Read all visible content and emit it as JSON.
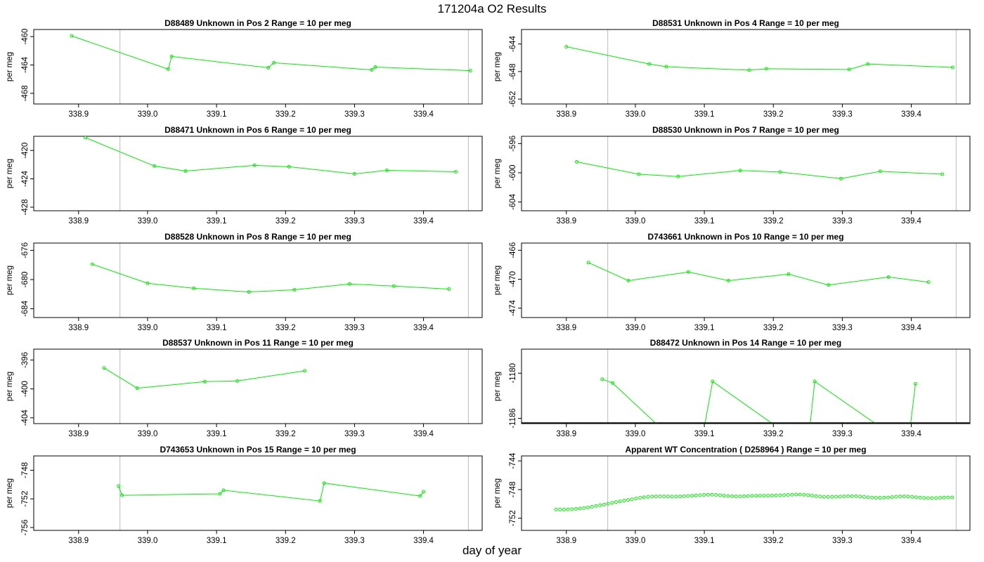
{
  "title": "171204a  O2 Results",
  "xlabel": "day of year",
  "colors": {
    "series": "#00ee00",
    "frame": "#000000",
    "vline": "#bbbbbb"
  },
  "chart_data": [
    {
      "type": "line",
      "title": "D88489    Unknown in Pos 2          Range = 10 per meg",
      "ylabel": "per meg",
      "xlim": [
        338.835,
        339.485
      ],
      "ylim": [
        -469.5,
        -459
      ],
      "xticks": [
        338.9,
        339.0,
        339.1,
        339.2,
        339.3,
        339.4
      ],
      "yticks": [
        -460,
        -464,
        -468
      ],
      "vlines": [
        338.96,
        339.465
      ],
      "x": [
        338.89,
        339.03,
        339.035,
        339.175,
        339.183,
        339.325,
        339.33,
        339.468
      ],
      "y": [
        -459.9,
        -464.6,
        -462.8,
        -464.4,
        -463.7,
        -464.7,
        -464.3,
        -464.8
      ]
    },
    {
      "type": "line",
      "title": "D88531    Unknown in Pos 4          Range = 10 per meg",
      "ylabel": "per meg",
      "xlim": [
        338.835,
        339.485
      ],
      "ylim": [
        -652.7,
        -641.9
      ],
      "xticks": [
        338.9,
        339.0,
        339.1,
        339.2,
        339.3,
        339.4
      ],
      "yticks": [
        -644,
        -648,
        -652
      ],
      "vlines": [
        338.96,
        339.465
      ],
      "x": [
        338.9,
        339.02,
        339.045,
        339.165,
        339.19,
        339.31,
        339.337,
        339.46
      ],
      "y": [
        -644.4,
        -646.9,
        -647.3,
        -647.8,
        -647.6,
        -647.7,
        -646.9,
        -647.4
      ]
    },
    {
      "type": "line",
      "title": "D88471    Unknown in Pos 6          Range = 10 per meg",
      "ylabel": "per meg",
      "xlim": [
        338.835,
        339.485
      ],
      "ylim": [
        -428.5,
        -418
      ],
      "xticks": [
        338.9,
        339.0,
        339.1,
        339.2,
        339.3,
        339.4
      ],
      "yticks": [
        -420,
        -424,
        -428
      ],
      "vlines": [
        338.96,
        339.465
      ],
      "x": [
        338.91,
        339.01,
        339.055,
        339.155,
        339.205,
        339.3,
        339.347,
        339.447
      ],
      "y": [
        -418.2,
        -422.2,
        -422.9,
        -422.1,
        -422.3,
        -423.3,
        -422.8,
        -423.0
      ]
    },
    {
      "type": "line",
      "title": "D88530    Unknown in Pos 7          Range = 10 per meg",
      "ylabel": "per meg",
      "xlim": [
        338.835,
        339.485
      ],
      "ylim": [
        -605.2,
        -595
      ],
      "xticks": [
        338.9,
        339.0,
        339.1,
        339.2,
        339.3,
        339.4
      ],
      "yticks": [
        -596,
        -600,
        -604
      ],
      "vlines": [
        338.96,
        339.465
      ],
      "x": [
        338.915,
        339.005,
        339.062,
        339.152,
        339.21,
        339.298,
        339.355,
        339.445
      ],
      "y": [
        -598.5,
        -600.2,
        -600.5,
        -599.7,
        -599.9,
        -600.8,
        -599.8,
        -600.2
      ]
    },
    {
      "type": "line",
      "title": "D88528    Unknown in Pos 8          Range = 10 per meg",
      "ylabel": "per meg",
      "xlim": [
        338.835,
        339.485
      ],
      "ylim": [
        -685.2,
        -675
      ],
      "xticks": [
        338.9,
        339.0,
        339.1,
        339.2,
        339.3,
        339.4
      ],
      "yticks": [
        -676,
        -680,
        -684
      ],
      "vlines": [
        338.96,
        339.465
      ],
      "x": [
        338.92,
        339.0,
        339.067,
        339.147,
        339.213,
        339.293,
        339.357,
        339.437
      ],
      "y": [
        -677.9,
        -680.5,
        -681.2,
        -681.7,
        -681.4,
        -680.6,
        -680.9,
        -681.3
      ]
    },
    {
      "type": "line",
      "title": "D743661    Unknown in Pos 10          Range = 10 per meg",
      "ylabel": "per meg",
      "xlim": [
        338.835,
        339.485
      ],
      "ylim": [
        -475.3,
        -465
      ],
      "xticks": [
        338.9,
        339.0,
        339.1,
        339.2,
        339.3,
        339.4
      ],
      "yticks": [
        -466,
        -470,
        -474
      ],
      "vlines": [
        338.96,
        339.465
      ],
      "x": [
        338.932,
        338.99,
        339.077,
        339.135,
        339.222,
        339.28,
        339.367,
        339.425
      ],
      "y": [
        -467.7,
        -470.2,
        -469.0,
        -470.2,
        -469.3,
        -470.8,
        -469.7,
        -470.4
      ]
    },
    {
      "type": "line",
      "title": "D88537    Unknown in Pos 11          Range = 10 per meg",
      "ylabel": "per meg",
      "xlim": [
        338.835,
        339.485
      ],
      "ylim": [
        -404.8,
        -394.5
      ],
      "xticks": [
        338.9,
        339.0,
        339.1,
        339.2,
        339.3,
        339.4
      ],
      "yticks": [
        -396,
        -400,
        -404
      ],
      "vlines": [
        338.96,
        339.465
      ],
      "x": [
        338.937,
        338.985,
        339.083,
        339.13,
        339.228
      ],
      "y": [
        -397.1,
        -399.9,
        -399.0,
        -398.9,
        -397.5
      ]
    },
    {
      "type": "line",
      "title": "D88472    Unknown in Pos 14          Range = 10 per meg",
      "ylabel": "per meg",
      "xlim": [
        338.835,
        339.485
      ],
      "ylim": [
        -1186.7,
        -1176.8
      ],
      "xticks": [
        338.9,
        339.0,
        339.1,
        339.2,
        339.3,
        339.4
      ],
      "yticks": [
        -1180,
        -1186
      ],
      "vlines": [
        338.96,
        339.465
      ],
      "x": [
        338.952,
        338.967,
        339.112,
        339.26,
        339.406
      ],
      "y": [
        -1180.8,
        -1181.3,
        -1181.1,
        -1181.1,
        -1181.4
      ],
      "note": "lines between points dip below the axis range"
    },
    {
      "type": "line",
      "title": "D743653    Unknown in Pos 15          Range = 10 per meg",
      "ylabel": "per meg",
      "xlim": [
        338.835,
        339.485
      ],
      "ylim": [
        -756.4,
        -746
      ],
      "xticks": [
        338.9,
        339.0,
        339.1,
        339.2,
        339.3,
        339.4
      ],
      "yticks": [
        -748,
        -752,
        -756
      ],
      "vlines": [
        338.96,
        339.465
      ],
      "x": [
        338.958,
        338.963,
        339.105,
        339.11,
        339.25,
        339.256,
        339.395,
        339.4
      ],
      "y": [
        -750.2,
        -751.5,
        -751.3,
        -750.8,
        -752.3,
        -749.8,
        -751.6,
        -751.0
      ]
    },
    {
      "type": "scatter",
      "title": "Apparent WT Concentration ( D258964 )          Range = 10 per meg",
      "ylabel": "per meg",
      "xlim": [
        338.835,
        339.485
      ],
      "ylim": [
        -753.7,
        -743.3
      ],
      "xticks": [
        338.9,
        339.0,
        339.1,
        339.2,
        339.3,
        339.4
      ],
      "yticks": [
        -744,
        -748,
        -752
      ],
      "vlines": [
        338.96,
        339.465
      ],
      "x_start": 338.885,
      "x_step": 0.0058,
      "y": [
        -750.8,
        -750.8,
        -750.8,
        -750.78,
        -750.75,
        -750.7,
        -750.65,
        -750.58,
        -750.5,
        -750.4,
        -750.3,
        -750.2,
        -750.1,
        -749.98,
        -749.85,
        -749.75,
        -749.65,
        -749.55,
        -749.45,
        -749.35,
        -749.25,
        -749.15,
        -749.08,
        -749.02,
        -748.98,
        -748.95,
        -748.95,
        -748.95,
        -748.97,
        -748.98,
        -748.98,
        -748.96,
        -748.93,
        -748.9,
        -748.86,
        -748.82,
        -748.78,
        -748.75,
        -748.72,
        -748.72,
        -748.75,
        -748.8,
        -748.85,
        -748.9,
        -748.93,
        -748.95,
        -748.95,
        -748.93,
        -748.9,
        -748.88,
        -748.87,
        -748.86,
        -748.85,
        -748.85,
        -748.84,
        -748.82,
        -748.8,
        -748.78,
        -748.75,
        -748.72,
        -748.7,
        -748.7,
        -748.73,
        -748.78,
        -748.85,
        -748.92,
        -748.98,
        -749.02,
        -749.03,
        -749.02,
        -749.0,
        -748.98,
        -748.95,
        -748.93,
        -748.92,
        -748.93,
        -748.97,
        -749.02,
        -749.08,
        -749.12,
        -749.15,
        -749.15,
        -749.13,
        -749.1,
        -749.05,
        -749.0,
        -748.96,
        -748.95,
        -748.97,
        -749.02,
        -749.08,
        -749.13,
        -749.17,
        -749.2,
        -749.2,
        -749.18,
        -749.15,
        -749.12,
        -749.1,
        -749.1
      ]
    }
  ]
}
